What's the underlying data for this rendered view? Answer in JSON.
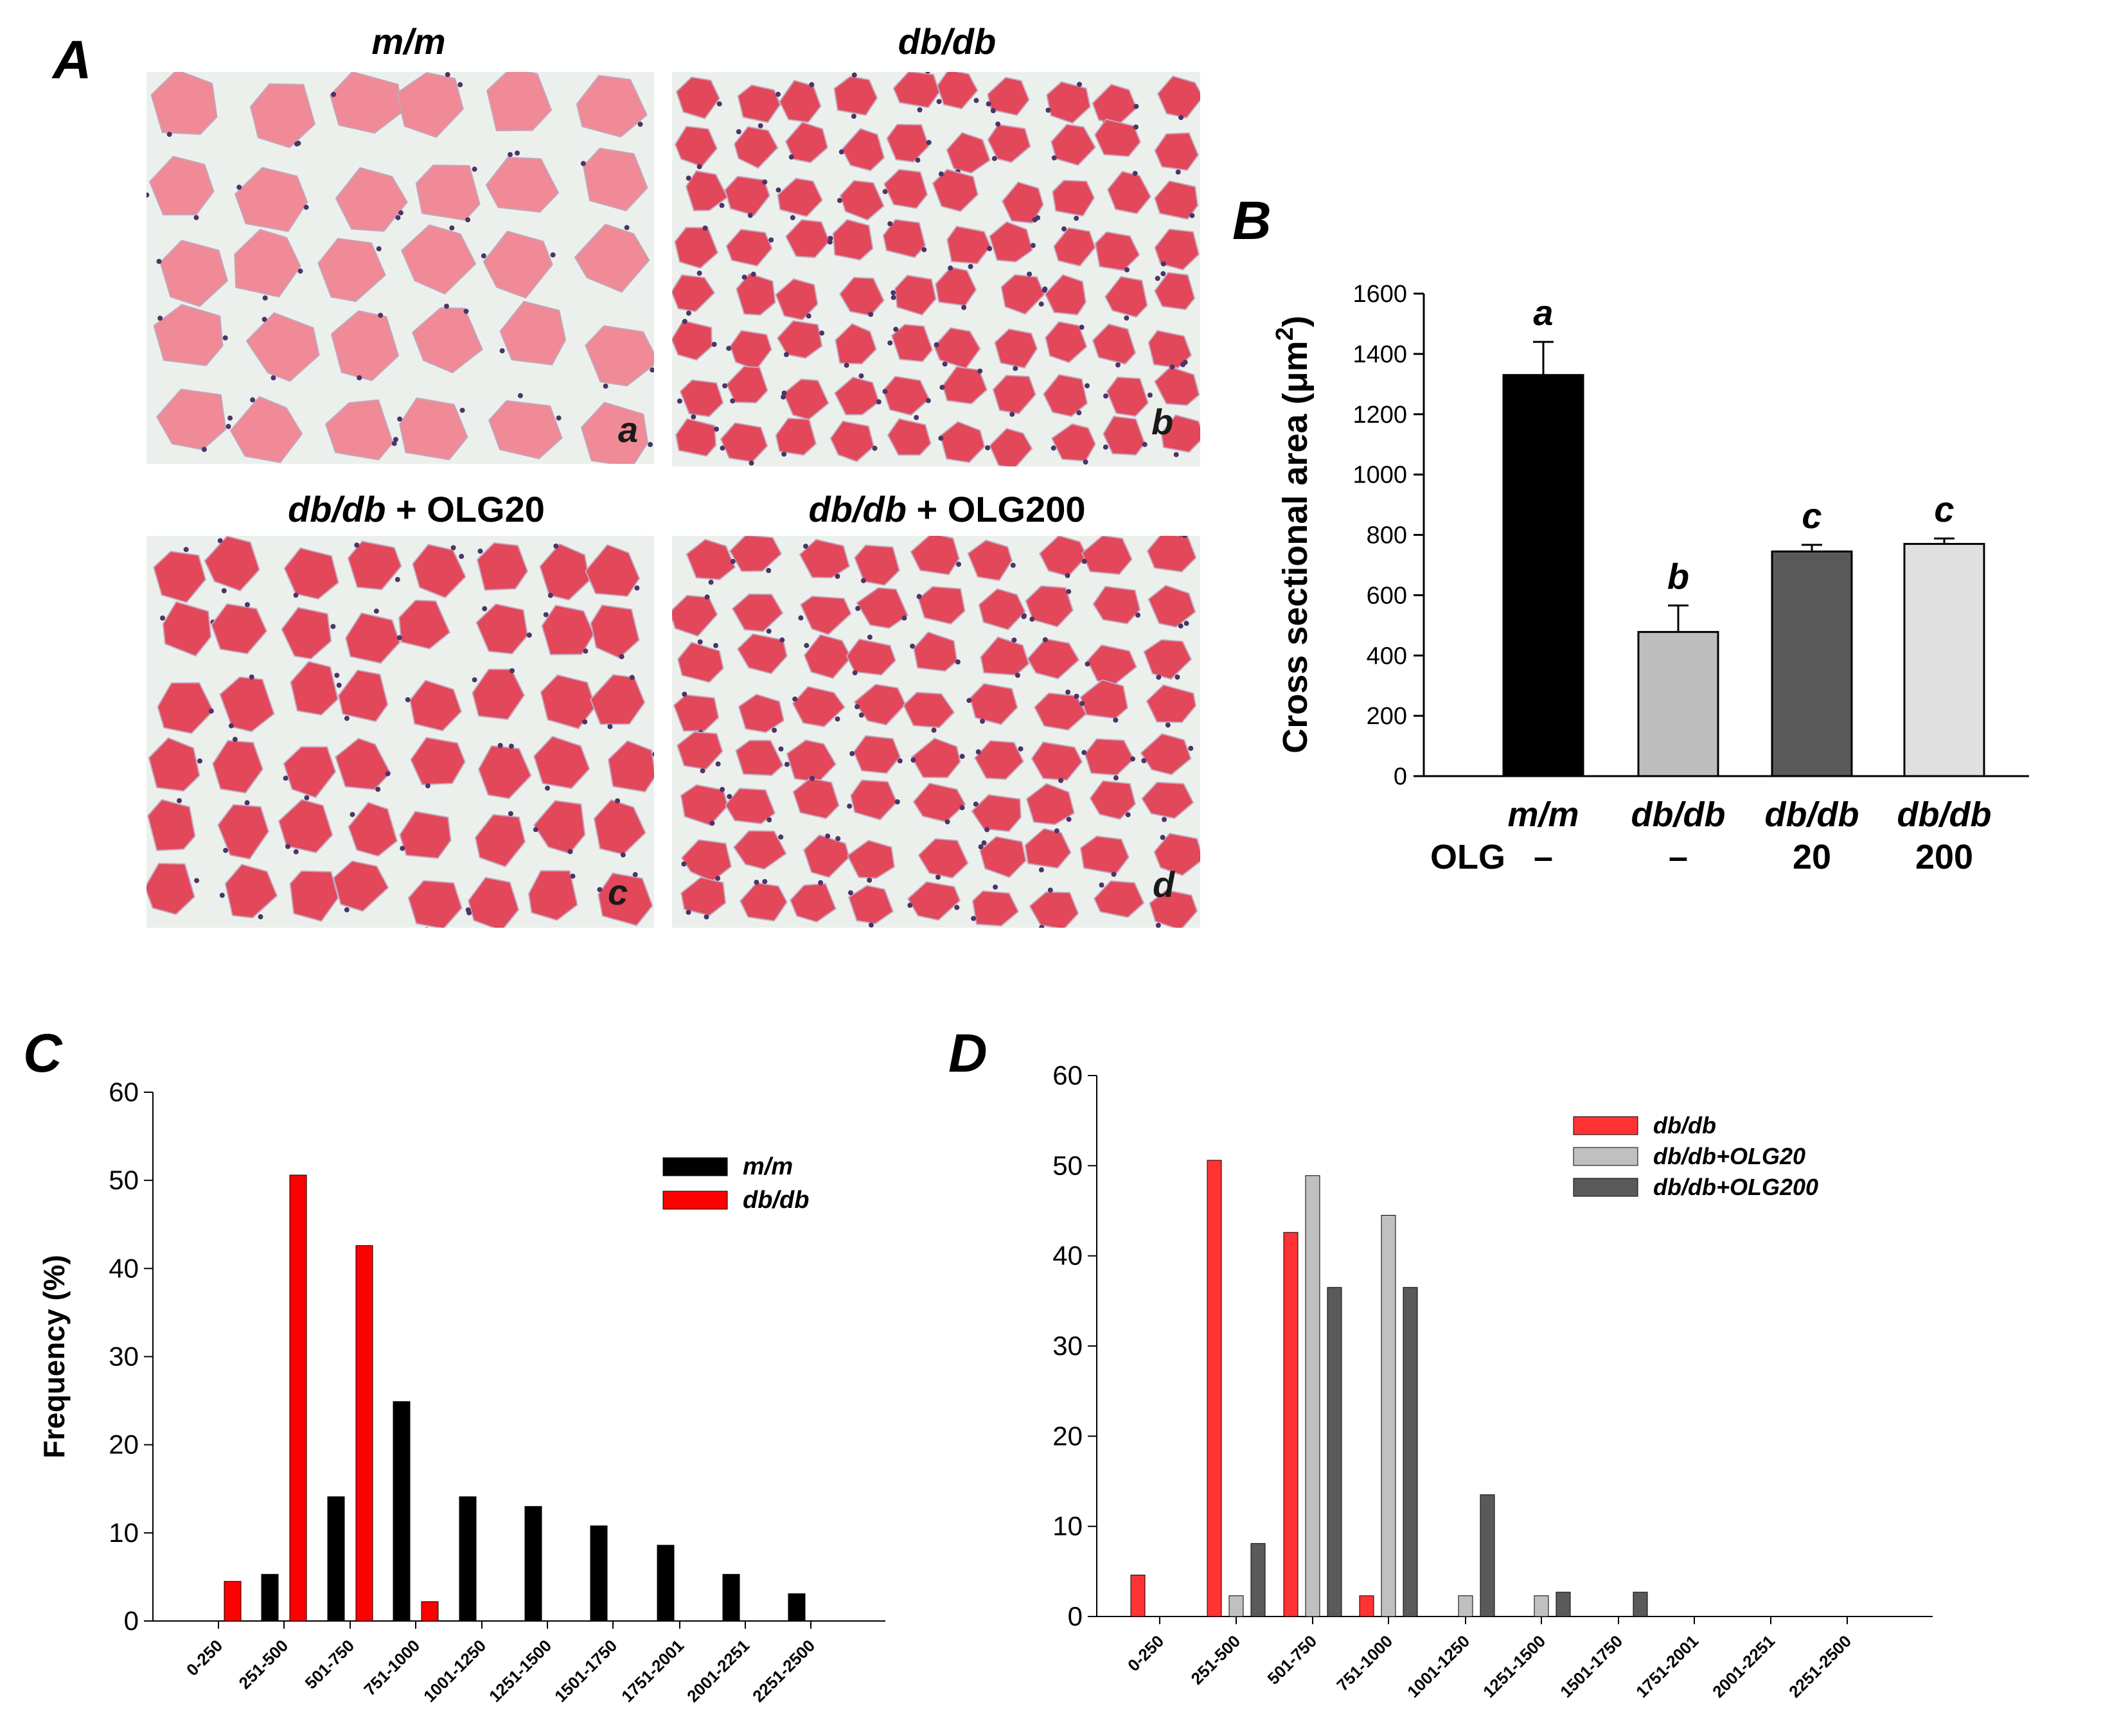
{
  "panel_letters": {
    "A": "A",
    "B": "B",
    "C": "C",
    "D": "D"
  },
  "micrographs": {
    "titles": [
      {
        "geno": "m/m",
        "suffix": ""
      },
      {
        "geno": "db/db",
        "suffix": ""
      },
      {
        "geno": "db/db",
        "suffix": " + OLG20"
      },
      {
        "geno": "db/db",
        "suffix": " + OLG200"
      }
    ],
    "corner_labels": [
      "a",
      "b",
      "c",
      "d"
    ],
    "colors": {
      "background": "#ecf0ec",
      "fiber": "#e2475a",
      "fiber_pale": "#f08a96",
      "nucleus": "#4d3468",
      "border": "#c3a6be"
    }
  },
  "chart_data": [
    {
      "panel": "B",
      "type": "bar",
      "ylabel_main": "Cross sectional area (μm",
      "ylabel_sup": "2",
      "ylabel_close": ")",
      "ylim": [
        0,
        1600
      ],
      "yticks": [
        "0",
        "200",
        "400",
        "600",
        "800",
        "1000",
        "1200",
        "1400",
        "1600"
      ],
      "categories": [
        "m/m",
        "db/db",
        "db/db",
        "db/db"
      ],
      "olg_label": "OLG",
      "olg_values": [
        "–",
        "–",
        "20",
        "200"
      ],
      "values": [
        1330,
        478,
        745,
        770
      ],
      "errors": [
        110,
        88,
        22,
        18
      ],
      "significance": [
        "a",
        "b",
        "c",
        "c"
      ],
      "colors": [
        "#000000",
        "#bebebe",
        "#595959",
        "#e0e0e0"
      ]
    },
    {
      "panel": "C",
      "type": "bar",
      "ylabel": "Frequency (%)",
      "ylim": [
        0,
        60
      ],
      "yticks": [
        "0",
        "10",
        "20",
        "30",
        "40",
        "50",
        "60"
      ],
      "categories": [
        "0-250",
        "251-500",
        "501-750",
        "751-1000",
        "1001-1250",
        "1251-1500",
        "1501-1750",
        "1751-2001",
        "2001-2251",
        "2251-2500"
      ],
      "series": [
        {
          "name": "m/m",
          "color": "#000000",
          "values": [
            0,
            5.3,
            14.1,
            24.9,
            14.1,
            13.0,
            10.8,
            8.6,
            5.3,
            3.1
          ]
        },
        {
          "name": "db/db",
          "color": "#ff0000",
          "values": [
            4.5,
            50.6,
            42.6,
            2.2,
            0,
            0,
            0,
            0,
            0,
            0
          ]
        }
      ],
      "legend_position": "upper-right"
    },
    {
      "panel": "D",
      "type": "bar",
      "ylim": [
        0,
        60
      ],
      "yticks": [
        "0",
        "10",
        "20",
        "30",
        "40",
        "50",
        "60"
      ],
      "categories": [
        "0-250",
        "251-500",
        "501-750",
        "751-1000",
        "1001-1250",
        "1251-1500",
        "1501-1750",
        "1751-2001",
        "2001-2251",
        "2251-2500"
      ],
      "series": [
        {
          "name": "db/db",
          "color": "#ff3333",
          "values": [
            4.6,
            50.6,
            42.6,
            2.3,
            0,
            0,
            0,
            0,
            0,
            0
          ]
        },
        {
          "name": "db/db+OLG20",
          "color": "#c0c0c0",
          "values": [
            0,
            2.3,
            48.9,
            44.5,
            2.3,
            2.3,
            0,
            0,
            0,
            0
          ]
        },
        {
          "name": "db/db+OLG200",
          "color": "#5a5a5a",
          "values": [
            0,
            8.1,
            36.5,
            36.5,
            13.5,
            2.7,
            2.7,
            0,
            0,
            0
          ]
        }
      ],
      "legend_position": "upper-right"
    }
  ]
}
